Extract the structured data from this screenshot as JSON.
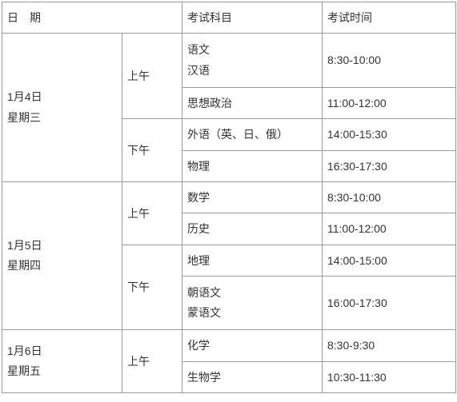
{
  "header": {
    "date": "日　期",
    "subject": "考试科目",
    "time": "考试时间"
  },
  "rows": [
    {
      "date": "1月4日\n星期三",
      "sessions": [
        {
          "period": "上午",
          "slots": [
            {
              "subject": "语文\n汉语",
              "time": "8:30-10:00"
            },
            {
              "subject": "思想政治",
              "time": "11:00-12:00"
            }
          ]
        },
        {
          "period": "下午",
          "slots": [
            {
              "subject": "外语（英、日、俄）",
              "time": "14:00-15:30"
            },
            {
              "subject": "物理",
              "time": "16:30-17:30"
            }
          ]
        }
      ]
    },
    {
      "date": "1月5日\n星期四",
      "sessions": [
        {
          "period": "上午",
          "slots": [
            {
              "subject": "数学",
              "time": "8:30-10:00"
            },
            {
              "subject": "历史",
              "time": "11:00-12:00"
            }
          ]
        },
        {
          "period": "下午",
          "slots": [
            {
              "subject": "地理",
              "time": "14:00-15:00"
            },
            {
              "subject": "朝语文\n蒙语文",
              "time": "16:00-17:30"
            }
          ]
        }
      ]
    },
    {
      "date": "1月6日\n星期五",
      "sessions": [
        {
          "period": "上午",
          "slots": [
            {
              "subject": "化学",
              "time": "8:30-9:30"
            },
            {
              "subject": "生物学",
              "time": "10:30-11:30"
            }
          ]
        }
      ]
    }
  ]
}
